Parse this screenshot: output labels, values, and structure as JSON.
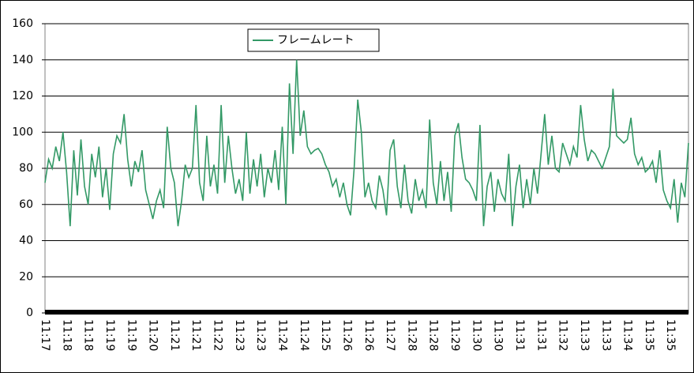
{
  "chart_data": {
    "type": "line",
    "categories": [
      "11:17",
      null,
      null,
      null,
      null,
      null,
      "11:18",
      null,
      null,
      null,
      null,
      null,
      "11:18",
      null,
      null,
      null,
      null,
      null,
      "11:19",
      null,
      null,
      null,
      null,
      null,
      "11:19",
      null,
      null,
      null,
      null,
      null,
      "11:20",
      null,
      null,
      null,
      null,
      null,
      "11:21",
      null,
      null,
      null,
      null,
      null,
      "11:21",
      null,
      null,
      null,
      null,
      null,
      "11:22",
      null,
      null,
      null,
      null,
      null,
      "11:23",
      null,
      null,
      null,
      null,
      null,
      "11:23",
      null,
      null,
      null,
      null,
      null,
      "11:24",
      null,
      null,
      null,
      null,
      null,
      "11:24",
      null,
      null,
      null,
      null,
      null,
      "11:25",
      null,
      null,
      null,
      null,
      null,
      "11:26",
      null,
      null,
      null,
      null,
      null,
      "11:26",
      null,
      null,
      null,
      null,
      null,
      "11:27",
      null,
      null,
      null,
      null,
      null,
      "11:28",
      null,
      null,
      null,
      null,
      null,
      "11:28",
      null,
      null,
      null,
      null,
      null,
      "11:29",
      null,
      null,
      null,
      null,
      null,
      "11:30",
      null,
      null,
      null,
      null,
      null,
      "11:30",
      null,
      null,
      null,
      null,
      null,
      "11:31",
      null,
      null,
      null,
      null,
      null,
      "11:31",
      null,
      null,
      null,
      null,
      null,
      "11:32",
      null,
      null,
      null,
      null,
      null,
      "11:33",
      null,
      null,
      null,
      null,
      null,
      "11:33",
      null,
      null,
      null,
      null,
      null,
      "11:34",
      null,
      null,
      null,
      null,
      null,
      "11:35",
      null,
      null,
      null,
      null,
      null,
      "11:35",
      null,
      null,
      null,
      null,
      null
    ],
    "series": [
      {
        "name": "フレームレート",
        "color": "#339966",
        "values": [
          72,
          85,
          80,
          92,
          84,
          100,
          78,
          48,
          90,
          65,
          96,
          70,
          60,
          88,
          75,
          92,
          64,
          80,
          57,
          88,
          98,
          94,
          110,
          85,
          70,
          84,
          78,
          90,
          68,
          60,
          52,
          62,
          68,
          58,
          103,
          80,
          72,
          48,
          62,
          82,
          75,
          80,
          115,
          72,
          62,
          98,
          70,
          82,
          66,
          115,
          72,
          98,
          80,
          66,
          74,
          62,
          100,
          66,
          85,
          70,
          88,
          64,
          80,
          72,
          90,
          68,
          103,
          60,
          127,
          88,
          140,
          98,
          112,
          92,
          88,
          90,
          91,
          88,
          82,
          78,
          70,
          74,
          64,
          72,
          60,
          54,
          80,
          118,
          100,
          64,
          72,
          62,
          58,
          76,
          68,
          54,
          90,
          96,
          70,
          58,
          82,
          62,
          55,
          74,
          62,
          68,
          58,
          107,
          72,
          60,
          84,
          62,
          78,
          56,
          98,
          105,
          86,
          74,
          72,
          68,
          62,
          104,
          48,
          70,
          78,
          56,
          74,
          66,
          62,
          88,
          48,
          70,
          82,
          58,
          74,
          60,
          80,
          66,
          88,
          110,
          82,
          98,
          80,
          78,
          94,
          88,
          82,
          92,
          86,
          115,
          96,
          84,
          90,
          88,
          84,
          80,
          86,
          92,
          124,
          98,
          96,
          94,
          96,
          108,
          88,
          82,
          86,
          78,
          80,
          84,
          72,
          90,
          68,
          62,
          58,
          74,
          50,
          72,
          64,
          94
        ]
      }
    ],
    "ylim": [
      0,
      160
    ],
    "yticks": [
      0,
      20,
      40,
      60,
      80,
      100,
      120,
      140,
      160
    ],
    "grid": true
  }
}
